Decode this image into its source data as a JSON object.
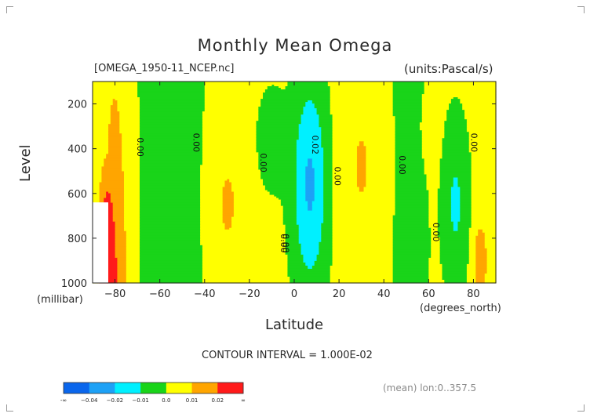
{
  "figure": {
    "title": "Monthly Mean Omega",
    "file_label": "[OMEGA_1950-11_NCEP.nc]",
    "units_label": "(units:Pascal/s)",
    "ylabel": "Level",
    "yunits": "(millibar)",
    "xlabel": "Latitude",
    "xunits": "(degrees_north)",
    "contour_interval": "CONTOUR INTERVAL = 1.000E-02",
    "mean_note": "(mean) lon:0..357.5"
  },
  "chart_data": {
    "type": "heatmap",
    "title": "Monthly Mean Omega",
    "xlabel": "Latitude",
    "ylabel": "Level",
    "units": "Pascal/s",
    "xlim": [
      -90,
      90
    ],
    "ylim": [
      1000,
      100
    ],
    "xticks": [
      -80,
      -60,
      -40,
      -20,
      0,
      20,
      40,
      60,
      80
    ],
    "yticks": [
      200,
      400,
      600,
      800,
      1000
    ],
    "contour_interval": 0.01,
    "contour_labels": [
      "0.00",
      "0.00",
      "0.00",
      "0.00",
      "0.02",
      "0.00",
      "0.00",
      "0.00",
      "0.00",
      "0.00"
    ],
    "colorbar": {
      "colors": [
        "#0a66ec",
        "#1da1f6",
        "#00f0ff",
        "#19d419",
        "#ffff00",
        "#ffa500",
        "#ff1a1a"
      ],
      "tick_labels": [
        "-∞",
        "−0.04",
        "−0.02",
        "−0.01",
        "0.0",
        "0.01",
        "0.02",
        "∞"
      ]
    },
    "class_colors": {
      "-3": "#0a66ec",
      "-2": "#1da1f6",
      "-1": "#00f0ff",
      "0": "#19d419",
      "1": "#ffff00",
      "2": "#ffa500",
      "3": "#ff1a1a"
    }
  }
}
